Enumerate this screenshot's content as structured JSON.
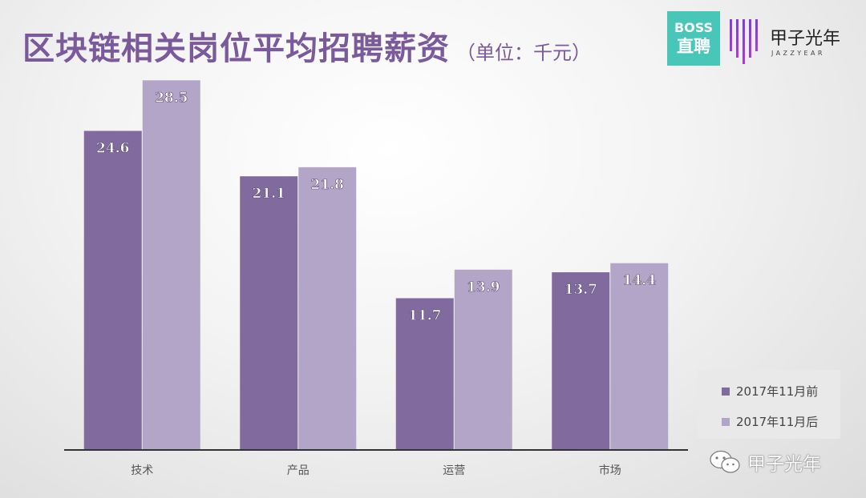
{
  "title": "区块链相关岗位平均招聘薪资",
  "subtitle": "（单位：千元）",
  "logos": {
    "boss_line1": "BOSS",
    "boss_line2": "直聘",
    "jazz_cn": "甲子光年",
    "jazz_en": "JAZZYEAR",
    "boss_color": "#48c6b8"
  },
  "watermark": "甲子光年",
  "colors": {
    "series1": "#806a9e",
    "series2": "#b3a5c8",
    "title": "#7a5a9a"
  },
  "chart_data": {
    "type": "bar",
    "categories": [
      "技术",
      "产品",
      "运营",
      "市场"
    ],
    "series": [
      {
        "name": "2017年11月前",
        "values": [
          24.6,
          21.1,
          11.7,
          13.7
        ]
      },
      {
        "name": "2017年11月后",
        "values": [
          28.5,
          21.8,
          13.9,
          14.4
        ]
      }
    ],
    "ylim": [
      0,
      30
    ],
    "grid": false,
    "legend_position": "bottom-right",
    "data_labels": true
  }
}
